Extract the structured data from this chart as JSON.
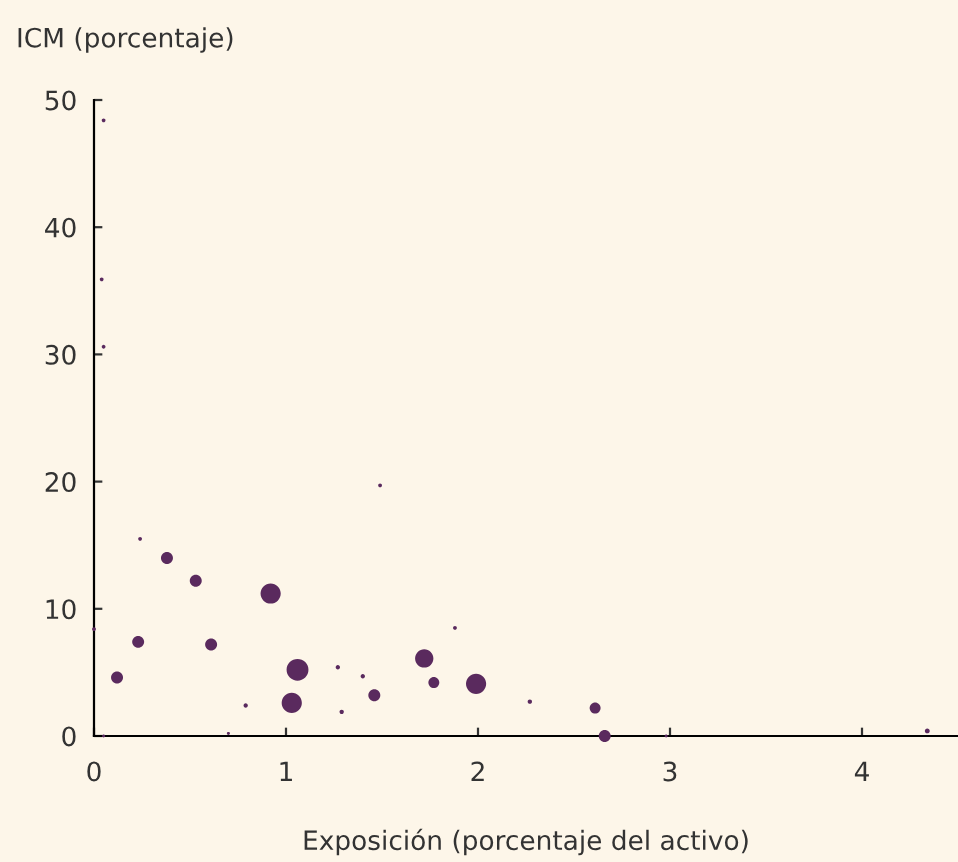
{
  "chart_data": {
    "type": "bubble",
    "xlabel": "Exposición (porcentaje del activo)",
    "ylabel": "ICM (porcentaje)",
    "xlim": [
      0,
      4.5
    ],
    "xticks": [
      0,
      1,
      2,
      3,
      4
    ],
    "ylim": [
      0,
      50
    ],
    "yticks": [
      0,
      10,
      20,
      30,
      40,
      50
    ],
    "grid": false,
    "legend": false,
    "series": [
      {
        "color": "#5a2a5e",
        "x": [
          0.05,
          0.04,
          0.05,
          0.0,
          0.24,
          0.12,
          0.23,
          0.38,
          0.53,
          0.61,
          0.92,
          1.06,
          1.03,
          0.79,
          0.7,
          0.05,
          1.27,
          1.29,
          1.4,
          1.46,
          1.49,
          1.88,
          1.72,
          1.77,
          1.99,
          2.27,
          2.61,
          2.66,
          2.98,
          4.34
        ],
        "values": [
          48.4,
          35.9,
          30.6,
          8.4,
          15.5,
          4.6,
          7.4,
          14.0,
          12.2,
          7.2,
          11.2,
          5.2,
          2.6,
          2.4,
          0.2,
          0.0,
          5.4,
          1.9,
          4.7,
          3.2,
          19.7,
          8.5,
          6.1,
          4.2,
          4.1,
          2.7,
          2.2,
          0.0,
          0.0,
          0.4
        ],
        "sizes": [
          0.03,
          0.03,
          0.03,
          0.03,
          0.03,
          0.3,
          0.3,
          0.3,
          0.3,
          0.3,
          0.85,
          1,
          0.85,
          0.04,
          0.02,
          0.02,
          0.04,
          0.04,
          0.04,
          0.3,
          0.03,
          0.03,
          0.7,
          0.25,
          0.85,
          0.04,
          0.25,
          0.3,
          0.02,
          0.05
        ]
      }
    ]
  }
}
